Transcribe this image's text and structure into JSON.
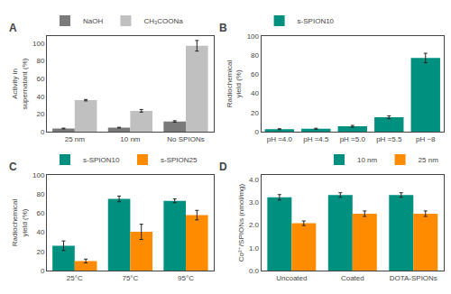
{
  "chart_data": [
    {
      "type": "bar",
      "title": "A",
      "categories": [
        "25 nm",
        "10 nm",
        "No SPIONs"
      ],
      "series": [
        {
          "name": "NaOH",
          "color": "#7a7a7a",
          "values": [
            3.5,
            4.5,
            11.5
          ],
          "errors": [
            0.4,
            0.4,
            0.8
          ]
        },
        {
          "name": "CH₃COONa",
          "color": "#c0c0c0",
          "values": [
            35.5,
            23.5,
            97.0
          ],
          "errors": [
            0.8,
            1.5,
            6.0
          ]
        }
      ],
      "ylabel": "Activity in\nsupernatant (%)",
      "ylim": [
        0,
        108
      ],
      "yticks": [
        0,
        20,
        40,
        60,
        80,
        100
      ],
      "grid": false,
      "legend": "upper left"
    },
    {
      "type": "bar",
      "title": "B",
      "categories": [
        "pH =4.0",
        "pH =4.5",
        "pH =5.0",
        "pH =5.5",
        "pH ~8"
      ],
      "series": [
        {
          "name": "s-SPION10",
          "color": "#009080",
          "values": [
            2.5,
            3.0,
            5.5,
            15.0,
            77.0
          ],
          "errors": [
            0.5,
            0.5,
            1.0,
            1.5,
            5.0
          ]
        }
      ],
      "ylabel": "Radiochemical\nyield (%)",
      "ylim": [
        0,
        100
      ],
      "yticks": [
        0,
        20,
        40,
        60,
        80,
        100
      ],
      "grid": false,
      "legend": "upper left"
    },
    {
      "type": "bar",
      "title": "C",
      "categories": [
        "25°C",
        "75°C",
        "95°C"
      ],
      "series": [
        {
          "name": "s-SPION10",
          "color": "#009080",
          "values": [
            26.0,
            75.0,
            73.0
          ],
          "errors": [
            5.0,
            3.0,
            2.0
          ]
        },
        {
          "name": "s-SPION25",
          "color": "#FF8C00",
          "values": [
            10.0,
            40.5,
            58.0
          ],
          "errors": [
            2.0,
            8.0,
            5.0
          ]
        }
      ],
      "ylabel": "Radiochemical\nyield (%)",
      "ylim": [
        0,
        100
      ],
      "yticks": [
        0,
        20,
        40,
        60,
        80,
        100
      ],
      "grid": false,
      "legend": "upper left"
    },
    {
      "type": "bar",
      "title": "D",
      "categories": [
        "Uncoated",
        "Coated",
        "DOTA-SPIONs"
      ],
      "series": [
        {
          "name": "10 nm",
          "color": "#009080",
          "values": [
            3.22,
            3.32,
            3.32
          ],
          "errors": [
            0.12,
            0.1,
            0.1
          ]
        },
        {
          "name": "25 nm",
          "color": "#FF8C00",
          "values": [
            2.08,
            2.5,
            2.5
          ],
          "errors": [
            0.1,
            0.12,
            0.12
          ]
        }
      ],
      "ylabel": "Co²⁺/SPIONs (nmol/mg)",
      "ylim": [
        0,
        4.2
      ],
      "yticks": [
        {
          "value": 0.0,
          "label": "0.0"
        },
        {
          "value": 1.0,
          "label": "1.0"
        },
        {
          "value": 2.0,
          "label": "2.0"
        },
        {
          "value": 3.0,
          "label": "3.0"
        },
        {
          "value": 4.0,
          "label": "4.0"
        }
      ],
      "grid": false,
      "legend": "upper right"
    }
  ]
}
